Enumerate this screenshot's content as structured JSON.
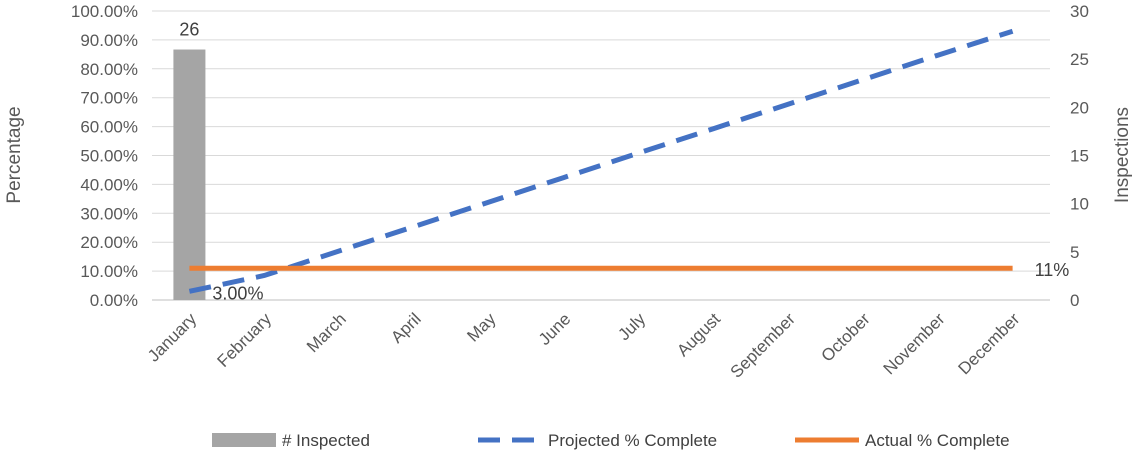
{
  "chart_data": {
    "type": "bar+line",
    "categories": [
      "January",
      "February",
      "March",
      "April",
      "May",
      "June",
      "July",
      "August",
      "September",
      "October",
      "November",
      "December"
    ],
    "primary_axis": {
      "label": "Percentage",
      "ylim": [
        0,
        1
      ],
      "ticks": [
        "0.00%",
        "10.00%",
        "20.00%",
        "30.00%",
        "40.00%",
        "50.00%",
        "60.00%",
        "70.00%",
        "80.00%",
        "90.00%",
        "100.00%"
      ]
    },
    "secondary_axis": {
      "label": "Inspections",
      "ylim": [
        0,
        30
      ],
      "ticks": [
        "0",
        "5",
        "10",
        "15",
        "20",
        "25",
        "30"
      ]
    },
    "series": [
      {
        "name": "# Inspected",
        "type": "bar",
        "axis": "secondary",
        "color": "#a5a5a5",
        "values": [
          26,
          null,
          null,
          null,
          null,
          null,
          null,
          null,
          null,
          null,
          null,
          null
        ],
        "data_labels": [
          "26"
        ]
      },
      {
        "name": "Projected % Complete",
        "type": "line",
        "axis": "primary",
        "color": "#4472c4",
        "dash": "dashed",
        "values": [
          0.03,
          0.0847,
          0.1694,
          0.2541,
          0.3388,
          0.4235,
          0.5082,
          0.5929,
          0.6776,
          0.7623,
          0.847,
          0.93
        ],
        "data_labels": [
          "3.00%"
        ]
      },
      {
        "name": "Actual % Complete",
        "type": "line",
        "axis": "primary",
        "color": "#ed7d31",
        "dash": "solid",
        "values": [
          0.11,
          0.11,
          0.11,
          0.11,
          0.11,
          0.11,
          0.11,
          0.11,
          0.11,
          0.11,
          0.11,
          0.11
        ],
        "data_labels": [
          "11%"
        ]
      }
    ],
    "grid": true,
    "legend_position": "bottom"
  }
}
